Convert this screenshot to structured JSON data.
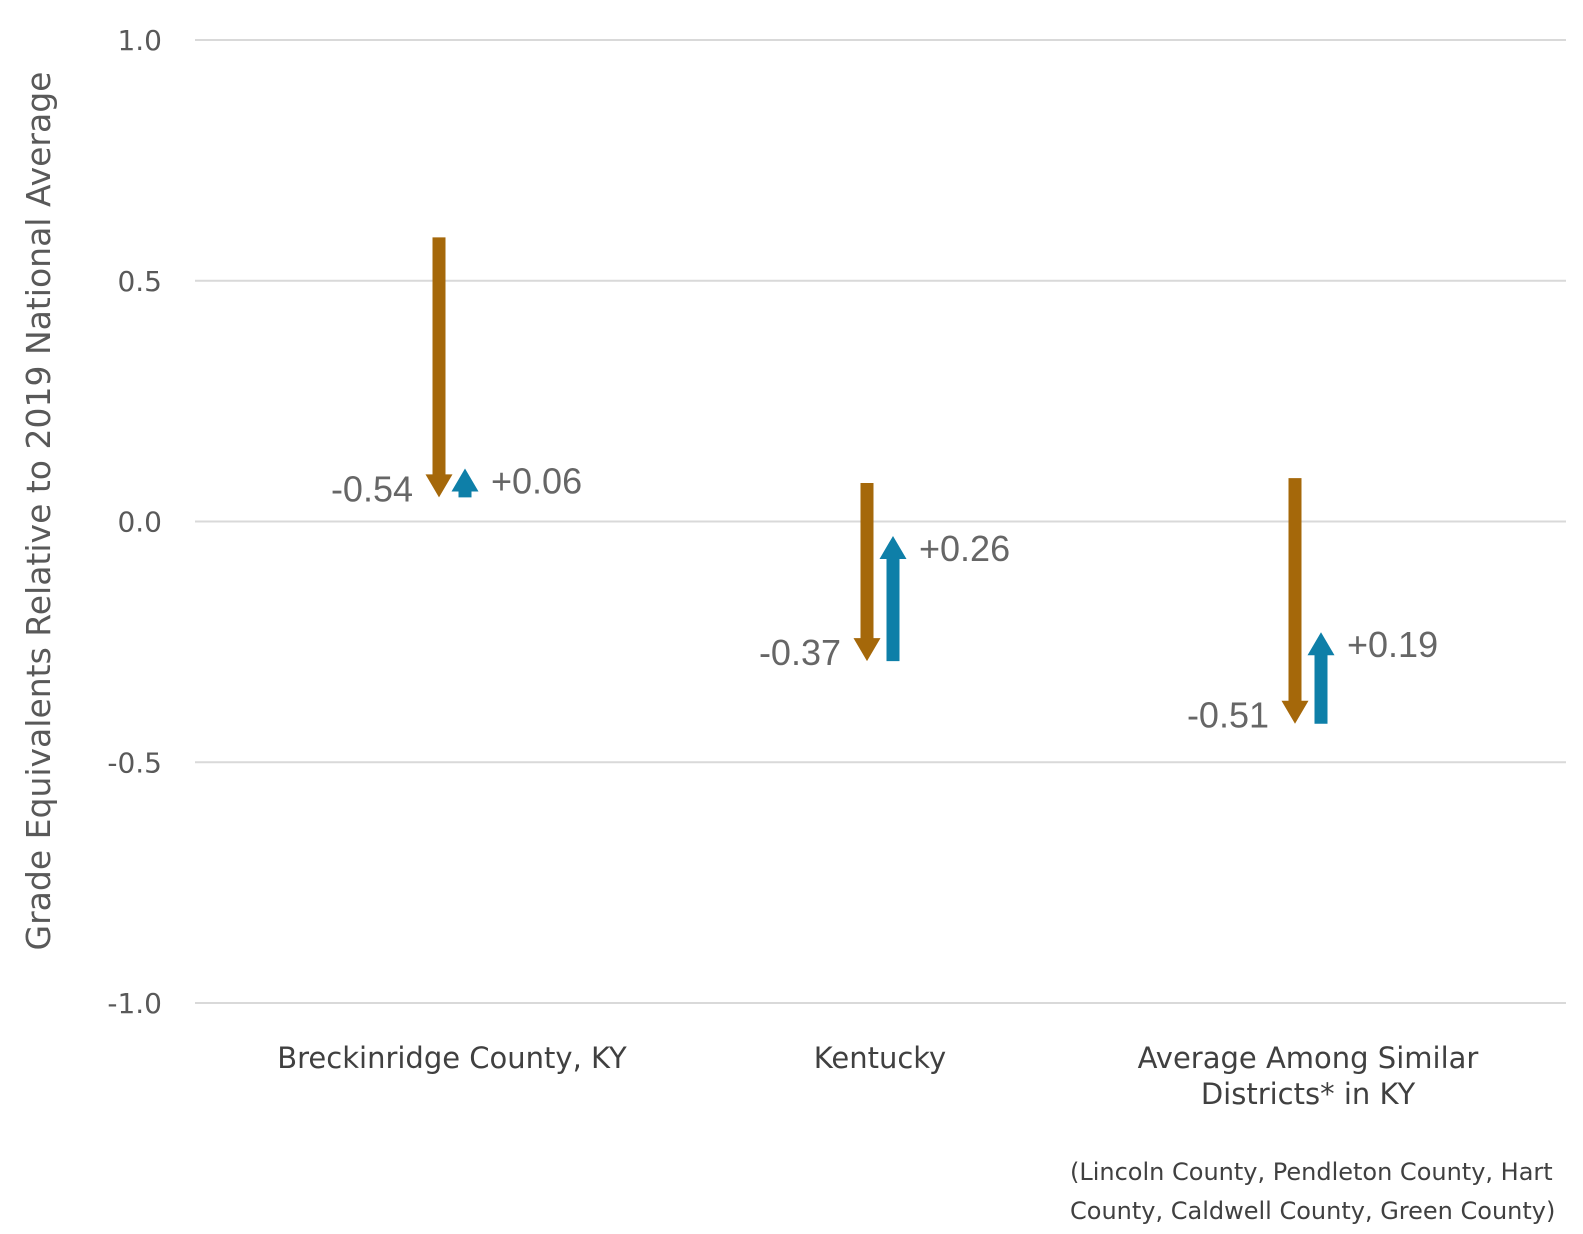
{
  "chart_data": {
    "type": "arrow",
    "ylabel": "Grade Equivalents Relative to 2019 National Average",
    "ylim": [
      -1.0,
      1.0
    ],
    "yticks": [
      1.0,
      0.5,
      0.0,
      -0.5,
      -1.0
    ],
    "ytick_labels": [
      "1.0",
      "0.5",
      "0.0",
      "-0.5",
      "-1.0"
    ],
    "grid": true,
    "colors": {
      "decline": "#A5680A",
      "recovery": "#0E7FA8"
    },
    "categories": [
      {
        "label_lines": [
          "Breckinridge County, KY"
        ],
        "start": 0.59,
        "low": 0.05,
        "end": 0.11,
        "decline_label": "-0.54",
        "recovery_label": "+0.06"
      },
      {
        "label_lines": [
          "Kentucky"
        ],
        "start": 0.08,
        "low": -0.29,
        "end": -0.03,
        "decline_label": "-0.37",
        "recovery_label": "+0.26"
      },
      {
        "label_lines": [
          "Average Among Similar",
          "Districts* in KY"
        ],
        "start": 0.09,
        "low": -0.42,
        "end": -0.23,
        "decline_label": "-0.51",
        "recovery_label": "+0.19"
      }
    ],
    "footnote_lines": [
      "(Lincoln County, Pendleton County, Hart",
      "County, Caldwell County, Green County)"
    ]
  }
}
